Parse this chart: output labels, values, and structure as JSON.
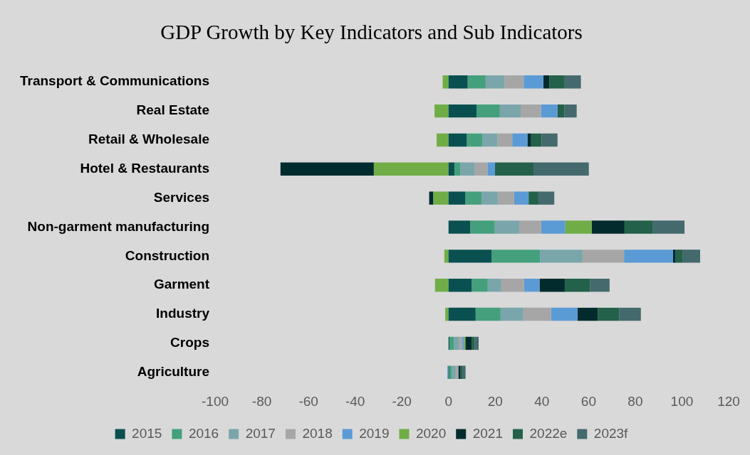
{
  "chart_data": {
    "type": "bar",
    "title": "GDP Growth by Key Indicators and Sub Indicators",
    "orientation": "horizontal",
    "stacked": true,
    "categories": [
      "Transport & Communications",
      "Real Estate",
      "Retail & Wholesale",
      "Hotel & Restaurants",
      "Services",
      "Non-garment manufacturing",
      "Construction",
      "Garment",
      "Industry",
      "Crops",
      "Agriculture"
    ],
    "series": [
      {
        "name": "2015",
        "color": "#0a5050",
        "values": [
          8.2,
          12,
          7.8,
          2.5,
          7.2,
          9.3,
          18.4,
          9.9,
          11.6,
          0.4,
          0.3
        ]
      },
      {
        "name": "2016",
        "color": "#44a07c",
        "values": [
          7.7,
          10,
          6.6,
          2.6,
          6.9,
          10.5,
          20.8,
          6.9,
          10.7,
          1.9,
          1.1
        ]
      },
      {
        "name": "2017",
        "color": "#7aa6ab",
        "values": [
          8.1,
          8.9,
          6.6,
          6,
          7,
          10.5,
          18.2,
          5.8,
          9.7,
          2.3,
          1.7
        ]
      },
      {
        "name": "2018",
        "color": "#a6a6a6",
        "values": [
          8.2,
          8.7,
          6.3,
          5.6,
          7,
          9.4,
          17.8,
          9.7,
          11.9,
          1.3,
          1.1
        ]
      },
      {
        "name": "2019",
        "color": "#5b9bd5",
        "values": [
          8.4,
          7.1,
          6.5,
          3.2,
          6.2,
          10.3,
          21,
          6.7,
          11.4,
          0.7,
          -0.5
        ]
      },
      {
        "name": "2020",
        "color": "#70ad47",
        "values": [
          -2.5,
          -6,
          -5.1,
          -32,
          -6.5,
          11.3,
          -1.8,
          -5.8,
          -1.4,
          0.6,
          null
        ]
      },
      {
        "name": "2021",
        "color": "#022b2e",
        "values": [
          2.6,
          0.3,
          1.6,
          -40,
          -1.8,
          14.1,
          1.1,
          10.8,
          8.7,
          2.7,
          0.8
        ]
      },
      {
        "name": "2022e",
        "color": "#24614a",
        "values": [
          6.3,
          2.6,
          4.5,
          16.5,
          4.2,
          12.2,
          3.1,
          10.9,
          9.1,
          1.3,
          0.9
        ]
      },
      {
        "name": "2023f",
        "color": "#446a6d",
        "values": [
          7.2,
          5.3,
          6.8,
          23.7,
          6.8,
          13.5,
          7.4,
          8.3,
          9.3,
          1.7,
          1.4
        ]
      }
    ],
    "xlim": [
      -100,
      120
    ],
    "xticks": [
      -100,
      -80,
      -60,
      -40,
      -20,
      0,
      20,
      40,
      60,
      80,
      100,
      120
    ],
    "grid": false,
    "legend": "bottom"
  }
}
